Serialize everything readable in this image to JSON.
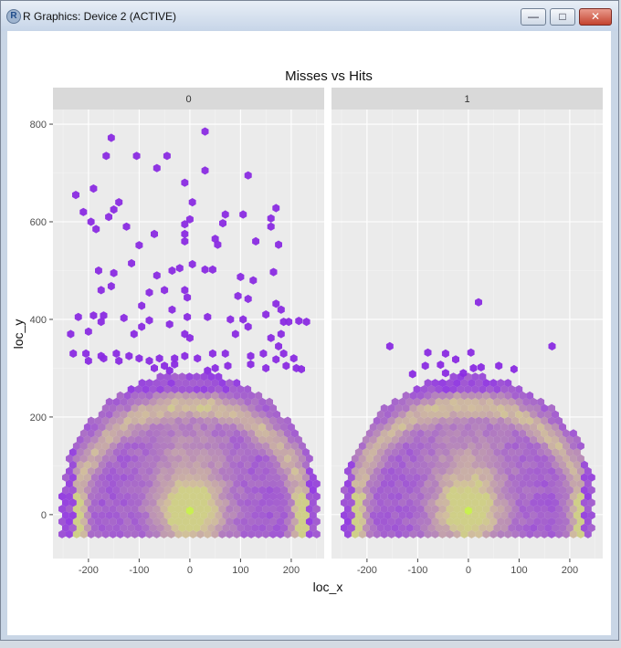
{
  "window": {
    "title": "R Graphics: Device 2 (ACTIVE)",
    "icon": "r-logo-icon",
    "minimize_label": "—",
    "maximize_label": "□",
    "close_label": "✕"
  },
  "chart_data": {
    "type": "hexbin",
    "title": "Misses vs Hits",
    "xlabel": "loc_x",
    "ylabel": "loc_y",
    "xlim": [
      -270,
      265
    ],
    "ylim": [
      -90,
      830
    ],
    "x_ticks": [
      -200,
      -100,
      0,
      100,
      200
    ],
    "x_tick_labels": [
      "-200",
      "-100",
      "0",
      "100",
      "200"
    ],
    "y_ticks": [
      0,
      200,
      400,
      600,
      800
    ],
    "y_tick_labels": [
      "0",
      "200",
      "400",
      "600",
      "800"
    ],
    "grid": true,
    "background_color": "#ebebeb",
    "strip_color": "#d9d9d9",
    "low_color": "#8a2be2",
    "high_color": "#c8f050",
    "facets": [
      {
        "label": "0",
        "hotspot": {
          "x": 0,
          "y": 8
        },
        "outliers": [
          [
            -155,
            772
          ],
          [
            30,
            785
          ],
          [
            -165,
            735
          ],
          [
            -105,
            735
          ],
          [
            -45,
            735
          ],
          [
            -65,
            710
          ],
          [
            30,
            705
          ],
          [
            115,
            695
          ],
          [
            -225,
            655
          ],
          [
            -190,
            668
          ],
          [
            -140,
            640
          ],
          [
            -10,
            680
          ],
          [
            5,
            640
          ],
          [
            -150,
            625
          ],
          [
            -160,
            610
          ],
          [
            -195,
            600
          ],
          [
            -210,
            620
          ],
          [
            0,
            605
          ],
          [
            -10,
            595
          ],
          [
            70,
            615
          ],
          [
            105,
            615
          ],
          [
            170,
            628
          ],
          [
            160,
            607
          ],
          [
            65,
            597
          ],
          [
            -10,
            575
          ],
          [
            -185,
            585
          ],
          [
            -125,
            590
          ],
          [
            -70,
            575
          ],
          [
            160,
            590
          ],
          [
            175,
            553
          ],
          [
            50,
            565
          ],
          [
            55,
            553
          ],
          [
            -100,
            552
          ],
          [
            -10,
            560
          ],
          [
            130,
            560
          ],
          [
            -115,
            515
          ],
          [
            -150,
            495
          ],
          [
            -180,
            500
          ],
          [
            5,
            513
          ],
          [
            -20,
            505
          ],
          [
            30,
            502
          ],
          [
            45,
            502
          ],
          [
            -65,
            490
          ],
          [
            -35,
            500
          ],
          [
            100,
            487
          ],
          [
            125,
            480
          ],
          [
            165,
            497
          ],
          [
            -155,
            468
          ],
          [
            -175,
            460
          ],
          [
            -80,
            455
          ],
          [
            -50,
            460
          ],
          [
            -10,
            460
          ],
          [
            -5,
            445
          ],
          [
            95,
            448
          ],
          [
            115,
            442
          ],
          [
            170,
            432
          ],
          [
            -95,
            428
          ],
          [
            -35,
            420
          ],
          [
            150,
            410
          ],
          [
            180,
            420
          ],
          [
            -220,
            405
          ],
          [
            -190,
            408
          ],
          [
            -170,
            408
          ],
          [
            -175,
            395
          ],
          [
            -130,
            403
          ],
          [
            -80,
            398
          ],
          [
            -40,
            390
          ],
          [
            -5,
            405
          ],
          [
            35,
            405
          ],
          [
            80,
            400
          ],
          [
            105,
            400
          ],
          [
            115,
            385
          ],
          [
            185,
            395
          ],
          [
            215,
            397
          ],
          [
            230,
            395
          ],
          [
            195,
            395
          ],
          [
            -200,
            375
          ],
          [
            -235,
            370
          ],
          [
            -95,
            385
          ],
          [
            -110,
            370
          ],
          [
            -10,
            370
          ],
          [
            0,
            362
          ],
          [
            90,
            370
          ],
          [
            160,
            362
          ],
          [
            180,
            370
          ],
          [
            175,
            345
          ],
          [
            -205,
            330
          ],
          [
            -175,
            325
          ],
          [
            -145,
            330
          ],
          [
            -120,
            325
          ],
          [
            -230,
            330
          ],
          [
            -200,
            315
          ],
          [
            -170,
            320
          ],
          [
            -140,
            315
          ],
          [
            -100,
            320
          ],
          [
            -80,
            315
          ],
          [
            -60,
            320
          ],
          [
            -30,
            320
          ],
          [
            -10,
            325
          ],
          [
            15,
            320
          ],
          [
            45,
            330
          ],
          [
            70,
            330
          ],
          [
            120,
            325
          ],
          [
            145,
            330
          ],
          [
            170,
            318
          ],
          [
            185,
            330
          ],
          [
            205,
            320
          ],
          [
            -70,
            300
          ],
          [
            -50,
            305
          ],
          [
            -30,
            308
          ],
          [
            50,
            300
          ],
          [
            75,
            305
          ],
          [
            120,
            308
          ],
          [
            150,
            300
          ],
          [
            190,
            305
          ],
          [
            210,
            300
          ],
          [
            220,
            298
          ],
          [
            -40,
            295
          ],
          [
            35,
            295
          ]
        ]
      },
      {
        "label": "1",
        "hotspot": {
          "x": 0,
          "y": 8
        },
        "outliers": [
          [
            20,
            435
          ],
          [
            -155,
            345
          ],
          [
            165,
            345
          ],
          [
            -80,
            332
          ],
          [
            5,
            332
          ],
          [
            -45,
            330
          ],
          [
            -25,
            318
          ],
          [
            -55,
            307
          ],
          [
            -85,
            305
          ],
          [
            10,
            300
          ],
          [
            25,
            302
          ],
          [
            60,
            305
          ],
          [
            90,
            298
          ],
          [
            -10,
            290
          ],
          [
            -45,
            290
          ],
          [
            -110,
            288
          ]
        ]
      }
    ]
  }
}
